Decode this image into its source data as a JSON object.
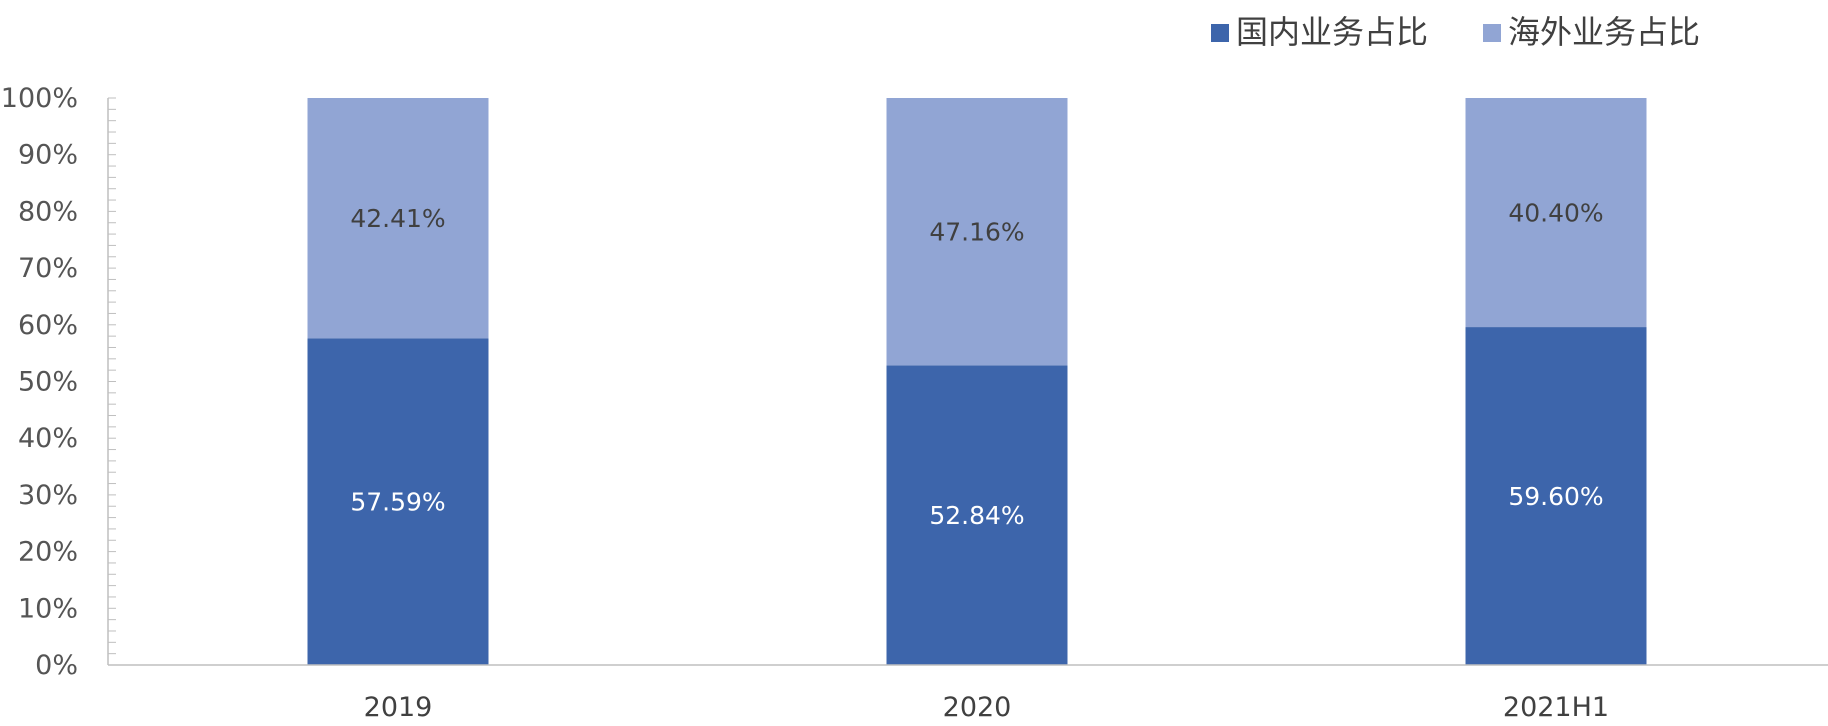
{
  "chart_data": {
    "type": "bar",
    "stacked": true,
    "categories": [
      "2019",
      "2020",
      "2021H1"
    ],
    "series": [
      {
        "name": "国内业务占比",
        "values": [
          57.59,
          52.84,
          59.6
        ],
        "labels": [
          "57.59%",
          "52.84%",
          "59.60%"
        ],
        "color": "#3d65ab",
        "label_color": "#ffffff"
      },
      {
        "name": "海外业务占比",
        "values": [
          42.41,
          47.16,
          40.4
        ],
        "labels": [
          "42.41%",
          "47.16%",
          "40.40%"
        ],
        "color": "#91a5d4",
        "label_color": "#404040"
      }
    ],
    "ylim": [
      0,
      100
    ],
    "yticks": [
      "0%",
      "10%",
      "20%",
      "30%",
      "40%",
      "50%",
      "60%",
      "70%",
      "80%",
      "90%",
      "100%"
    ],
    "title": "",
    "xlabel": "",
    "ylabel": "",
    "grid": false,
    "legend_position": "top-right"
  },
  "colors": {
    "axis": "#bfbfbf",
    "tick_text": "#555555",
    "category_text": "#404040"
  }
}
